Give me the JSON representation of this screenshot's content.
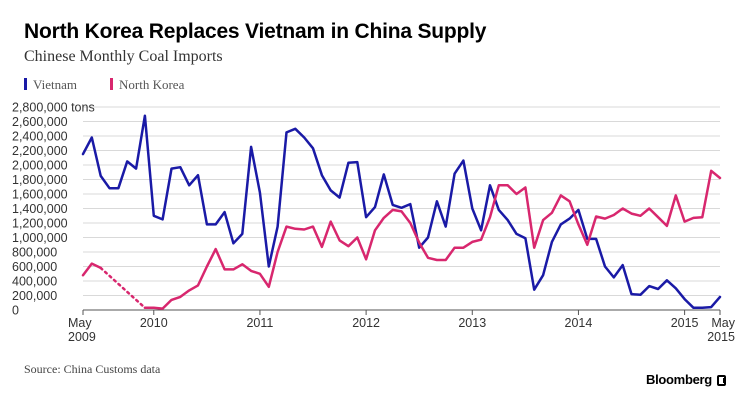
{
  "colors": {
    "vietnam": "#1a1aa6",
    "north_korea": "#d8276e",
    "grid": "#d9d9d9",
    "axis": "#555555"
  },
  "chart_data": {
    "type": "line",
    "title": "North Korea Replaces Vietnam in China Supply",
    "subtitle": "Chinese Monthly Coal Imports",
    "y_unit": "tons",
    "ylim": [
      0,
      2800000
    ],
    "y_ticks": [
      0,
      200000,
      400000,
      600000,
      800000,
      1000000,
      1200000,
      1400000,
      1600000,
      1800000,
      2000000,
      2200000,
      2400000,
      2600000,
      2800000
    ],
    "y_tick_labels": [
      "0",
      "200,000",
      "400,000",
      "600,000",
      "800,000",
      "1,000,000",
      "1,200,000",
      "1,400,000",
      "1,600,000",
      "1,800,000",
      "2,000,000",
      "2,200,000",
      "2,400,000",
      "2,600,000",
      "2,800,000 tons"
    ],
    "x_ticks": [
      "2009-05",
      "2010-01",
      "2011-01",
      "2012-01",
      "2013-01",
      "2014-01",
      "2015-01",
      "2015-05"
    ],
    "x_tick_labels": [
      {
        "line1": "May",
        "line2": "2009"
      },
      {
        "line1": "2010",
        "line2": ""
      },
      {
        "line1": "2011",
        "line2": ""
      },
      {
        "line1": "2012",
        "line2": ""
      },
      {
        "line1": "2013",
        "line2": ""
      },
      {
        "line1": "2014",
        "line2": ""
      },
      {
        "line1": "2015",
        "line2": ""
      },
      {
        "line1": "May",
        "line2": "2015"
      }
    ],
    "grid": true,
    "legend_position": "top-left",
    "series": [
      {
        "name": "Vietnam",
        "color": "#1a1aa6",
        "points": [
          [
            "2009-05",
            2150000
          ],
          [
            "2009-06",
            2380000
          ],
          [
            "2009-07",
            1850000
          ],
          [
            "2009-08",
            1680000
          ],
          [
            "2009-09",
            1680000
          ],
          [
            "2009-10",
            2050000
          ],
          [
            "2009-11",
            1950000
          ],
          [
            "2009-12",
            2680000
          ],
          [
            "2010-01",
            1300000
          ],
          [
            "2010-02",
            1250000
          ],
          [
            "2010-03",
            1950000
          ],
          [
            "2010-04",
            1970000
          ],
          [
            "2010-05",
            1720000
          ],
          [
            "2010-06",
            1860000
          ],
          [
            "2010-07",
            1180000
          ],
          [
            "2010-08",
            1180000
          ],
          [
            "2010-09",
            1350000
          ],
          [
            "2010-10",
            920000
          ],
          [
            "2010-11",
            1050000
          ],
          [
            "2010-12",
            2250000
          ],
          [
            "2011-01",
            1620000
          ],
          [
            "2011-02",
            600000
          ],
          [
            "2011-03",
            1150000
          ],
          [
            "2011-04",
            2450000
          ],
          [
            "2011-05",
            2500000
          ],
          [
            "2011-06",
            2380000
          ],
          [
            "2011-07",
            2230000
          ],
          [
            "2011-08",
            1860000
          ],
          [
            "2011-09",
            1650000
          ],
          [
            "2011-10",
            1550000
          ],
          [
            "2011-11",
            2030000
          ],
          [
            "2011-12",
            2040000
          ],
          [
            "2012-01",
            1280000
          ],
          [
            "2012-02",
            1420000
          ],
          [
            "2012-03",
            1870000
          ],
          [
            "2012-04",
            1450000
          ],
          [
            "2012-05",
            1410000
          ],
          [
            "2012-06",
            1460000
          ],
          [
            "2012-07",
            860000
          ],
          [
            "2012-08",
            1000000
          ],
          [
            "2012-09",
            1500000
          ],
          [
            "2012-10",
            1150000
          ],
          [
            "2012-11",
            1880000
          ],
          [
            "2012-12",
            2060000
          ],
          [
            "2013-01",
            1400000
          ],
          [
            "2013-02",
            1100000
          ],
          [
            "2013-03",
            1720000
          ],
          [
            "2013-04",
            1380000
          ],
          [
            "2013-05",
            1240000
          ],
          [
            "2013-06",
            1050000
          ],
          [
            "2013-07",
            990000
          ],
          [
            "2013-08",
            280000
          ],
          [
            "2013-09",
            480000
          ],
          [
            "2013-10",
            940000
          ],
          [
            "2013-11",
            1180000
          ],
          [
            "2013-12",
            1260000
          ],
          [
            "2014-01",
            1380000
          ],
          [
            "2014-02",
            980000
          ],
          [
            "2014-03",
            980000
          ],
          [
            "2014-04",
            600000
          ],
          [
            "2014-05",
            450000
          ],
          [
            "2014-06",
            620000
          ],
          [
            "2014-07",
            220000
          ],
          [
            "2014-08",
            210000
          ],
          [
            "2014-09",
            330000
          ],
          [
            "2014-10",
            290000
          ],
          [
            "2014-11",
            410000
          ],
          [
            "2014-12",
            300000
          ],
          [
            "2015-01",
            150000
          ],
          [
            "2015-02",
            30000
          ],
          [
            "2015-03",
            30000
          ],
          [
            "2015-04",
            40000
          ],
          [
            "2015-05",
            180000
          ]
        ]
      },
      {
        "name": "North Korea",
        "color": "#d8276e",
        "points": [
          [
            "2009-05",
            480000
          ],
          [
            "2009-06",
            640000
          ],
          [
            "2009-07",
            580000
          ],
          [
            "2009-08",
            null
          ],
          [
            "2009-09",
            null
          ],
          [
            "2009-10",
            null
          ],
          [
            "2009-11",
            null
          ],
          [
            "2009-12",
            30000
          ],
          [
            "2010-01",
            30000
          ],
          [
            "2010-02",
            20000
          ],
          [
            "2010-03",
            140000
          ],
          [
            "2010-04",
            180000
          ],
          [
            "2010-05",
            270000
          ],
          [
            "2010-06",
            340000
          ],
          [
            "2010-07",
            600000
          ],
          [
            "2010-08",
            840000
          ],
          [
            "2010-09",
            560000
          ],
          [
            "2010-10",
            560000
          ],
          [
            "2010-11",
            630000
          ],
          [
            "2010-12",
            540000
          ],
          [
            "2011-01",
            500000
          ],
          [
            "2011-02",
            320000
          ],
          [
            "2011-03",
            800000
          ],
          [
            "2011-04",
            1150000
          ],
          [
            "2011-05",
            1120000
          ],
          [
            "2011-06",
            1110000
          ],
          [
            "2011-07",
            1150000
          ],
          [
            "2011-08",
            870000
          ],
          [
            "2011-09",
            1220000
          ],
          [
            "2011-10",
            960000
          ],
          [
            "2011-11",
            880000
          ],
          [
            "2011-12",
            1000000
          ],
          [
            "2012-01",
            700000
          ],
          [
            "2012-02",
            1100000
          ],
          [
            "2012-03",
            1270000
          ],
          [
            "2012-04",
            1380000
          ],
          [
            "2012-05",
            1360000
          ],
          [
            "2012-06",
            1200000
          ],
          [
            "2012-07",
            930000
          ],
          [
            "2012-08",
            720000
          ],
          [
            "2012-09",
            690000
          ],
          [
            "2012-10",
            690000
          ],
          [
            "2012-11",
            860000
          ],
          [
            "2012-12",
            860000
          ],
          [
            "2013-01",
            940000
          ],
          [
            "2013-02",
            970000
          ],
          [
            "2013-03",
            1280000
          ],
          [
            "2013-04",
            1720000
          ],
          [
            "2013-05",
            1720000
          ],
          [
            "2013-06",
            1600000
          ],
          [
            "2013-07",
            1690000
          ],
          [
            "2013-08",
            860000
          ],
          [
            "2013-09",
            1240000
          ],
          [
            "2013-10",
            1340000
          ],
          [
            "2013-11",
            1580000
          ],
          [
            "2013-12",
            1500000
          ],
          [
            "2014-01",
            1180000
          ],
          [
            "2014-02",
            900000
          ],
          [
            "2014-03",
            1290000
          ],
          [
            "2014-04",
            1260000
          ],
          [
            "2014-05",
            1310000
          ],
          [
            "2014-06",
            1400000
          ],
          [
            "2014-07",
            1330000
          ],
          [
            "2014-08",
            1300000
          ],
          [
            "2014-09",
            1400000
          ],
          [
            "2014-10",
            1280000
          ],
          [
            "2014-11",
            1160000
          ],
          [
            "2014-12",
            1580000
          ],
          [
            "2015-01",
            1220000
          ],
          [
            "2015-02",
            1270000
          ],
          [
            "2015-03",
            1280000
          ],
          [
            "2015-04",
            1920000
          ],
          [
            "2015-05",
            1820000
          ]
        ]
      }
    ],
    "source": "Source: China Customs data",
    "brand": "Bloomberg"
  }
}
